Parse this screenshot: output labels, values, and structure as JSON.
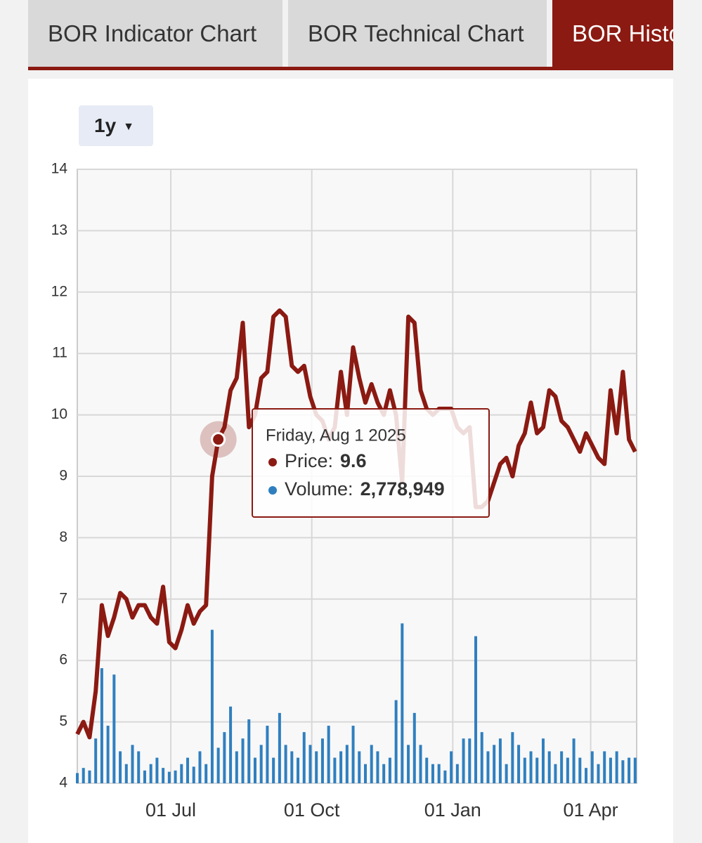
{
  "tabs": [
    "BOR Indicator Chart",
    "BOR Technical Chart",
    "BOR Histo"
  ],
  "range_button": "1y",
  "chart_data": {
    "type": "line",
    "x": [
      "01 May",
      "05 May",
      "09 May",
      "13 May",
      "17 May",
      "21 May",
      "25 May",
      "29 May",
      "02 Jun",
      "06 Jun",
      "10 Jun",
      "14 Jun",
      "18 Jun",
      "22 Jun",
      "26 Jun",
      "30 Jun",
      "04 Jul",
      "08 Jul",
      "12 Jul",
      "16 Jul",
      "20 Jul",
      "24 Jul",
      "28 Jul",
      "01 Aug",
      "05 Aug",
      "09 Aug",
      "13 Aug",
      "17 Aug",
      "21 Aug",
      "25 Aug",
      "29 Aug",
      "02 Sep",
      "06 Sep",
      "10 Sep",
      "14 Sep",
      "18 Sep",
      "22 Sep",
      "26 Sep",
      "30 Sep",
      "04 Oct",
      "08 Oct",
      "12 Oct",
      "16 Oct",
      "20 Oct",
      "24 Oct",
      "28 Oct",
      "01 Nov",
      "05 Nov",
      "09 Nov",
      "13 Nov",
      "17 Nov",
      "21 Nov",
      "25 Nov",
      "29 Nov",
      "03 Dec",
      "07 Dec",
      "11 Dec",
      "15 Dec",
      "19 Dec",
      "23 Dec",
      "27 Dec",
      "31 Dec",
      "04 Jan",
      "08 Jan",
      "12 Jan",
      "16 Jan",
      "20 Jan",
      "24 Jan",
      "28 Jan",
      "01 Feb",
      "05 Feb",
      "09 Feb",
      "13 Feb",
      "17 Feb",
      "21 Feb",
      "25 Feb",
      "01 Mar",
      "05 Mar",
      "09 Mar",
      "13 Mar",
      "17 Mar",
      "21 Mar",
      "25 Mar",
      "29 Mar",
      "02 Apr",
      "06 Apr",
      "10 Apr",
      "14 Apr",
      "18 Apr",
      "22 Apr",
      "26 Apr",
      "30 Apr"
    ],
    "series": [
      {
        "color": "#8b1a12",
        "values": [
          4.8,
          5.0,
          4.75,
          5.5,
          6.9,
          6.4,
          6.7,
          7.1,
          7.0,
          6.7,
          6.9,
          6.9,
          6.7,
          6.6,
          7.2,
          6.3,
          6.2,
          6.5,
          6.9,
          6.6,
          6.8,
          6.9,
          9.0,
          9.6,
          9.8,
          10.4,
          10.6,
          11.5,
          9.8,
          10.0,
          10.6,
          10.7,
          11.6,
          11.7,
          11.6,
          10.8,
          10.7,
          10.8,
          10.3,
          10.0,
          9.9,
          9.6,
          9.8,
          10.7,
          10.0,
          11.1,
          10.6,
          10.2,
          10.5,
          10.2,
          10.0,
          10.4,
          10.0,
          8.9,
          11.6,
          11.5,
          10.4,
          10.1,
          10.0,
          10.1,
          10.1,
          10.1,
          9.8,
          9.7,
          9.8,
          8.5,
          8.5,
          8.6,
          8.9,
          9.2,
          9.3,
          9.0,
          9.5,
          9.7,
          10.2,
          9.7,
          9.8,
          10.4,
          10.3,
          9.9,
          9.8,
          9.6,
          9.4,
          9.7,
          9.5,
          9.3,
          9.2,
          10.4,
          9.7,
          10.7,
          9.6,
          9.4
        ]
      },
      {
        "color": "#2f7fbf",
        "axis": "y2",
        "values": [
          800000,
          1200000,
          1000000,
          3500000,
          9000000,
          4500000,
          8500000,
          2500000,
          1500000,
          3000000,
          2500000,
          1000000,
          1500000,
          2000000,
          1200000,
          900000,
          1000000,
          1500000,
          2000000,
          1300000,
          2500000,
          1500000,
          12000000,
          2778949,
          4000000,
          6000000,
          2500000,
          3500000,
          5000000,
          2000000,
          3000000,
          4500000,
          2000000,
          5500000,
          3000000,
          2500000,
          2000000,
          4000000,
          3000000,
          2500000,
          3500000,
          4500000,
          2000000,
          2500000,
          3000000,
          4500000,
          2500000,
          1500000,
          3000000,
          2500000,
          1500000,
          2000000,
          6500000,
          12500000,
          3000000,
          5500000,
          3000000,
          2000000,
          1500000,
          1500000,
          1000000,
          2500000,
          1500000,
          3500000,
          3500000,
          11500000,
          4000000,
          2500000,
          3000000,
          3500000,
          1500000,
          4000000,
          3000000,
          2000000,
          2500000,
          2000000,
          3500000,
          2500000,
          1500000,
          2500000,
          2000000,
          3500000,
          2000000,
          1200000,
          2500000,
          1500000,
          2500000,
          2000000,
          2500000,
          1800000,
          2000000,
          2000000
        ]
      }
    ],
    "xlim": [
      "01 May",
      "01 May"
    ],
    "xticks": [
      "01 Jul",
      "01 Oct",
      "01 Jan",
      "01 Apr"
    ],
    "ylim": [
      4,
      14
    ],
    "yticks": [
      4,
      5,
      6,
      7,
      8,
      9,
      10,
      11,
      12,
      13,
      14
    ],
    "y2lim": [
      0,
      48000000
    ],
    "grid": true,
    "tooltip": {
      "date": "Friday, Aug 1 2025",
      "rows": [
        {
          "label": "Price:",
          "value": "9.6"
        },
        {
          "label": "Volume:",
          "value": "2,778,949"
        }
      ]
    }
  }
}
